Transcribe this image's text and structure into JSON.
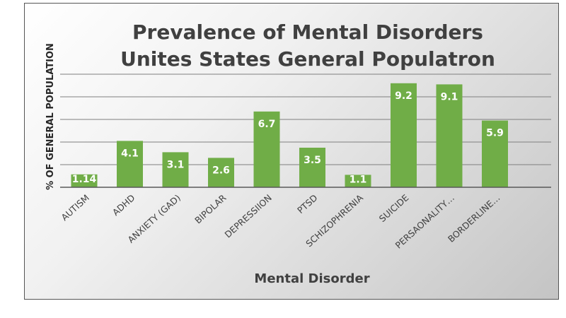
{
  "chart_data": {
    "type": "bar",
    "title": "Prevalence of Mental Disorders",
    "subtitle": "Unites States General Populatron",
    "xlabel": "Mental Disorder",
    "ylabel": "% OF GENERAL POPULATION",
    "categories": [
      "AUTISM",
      "ADHD",
      "ANXIETY (GAD)",
      "BIPOLAR",
      "DEPRESSIION",
      "PTSD",
      "SCHIZOPHRENIA",
      "SUICIDE",
      "PERSAONALITY…",
      "BORDERLINE…"
    ],
    "values": [
      1.14,
      4.1,
      3.1,
      2.6,
      6.7,
      3.5,
      1.1,
      9.2,
      9.1,
      5.9
    ],
    "value_labels": [
      "1.14",
      "4.1",
      "3.1",
      "2.6",
      "6.7",
      "3.5",
      "1.1",
      "9.2",
      "9.1",
      "5.9"
    ],
    "ylim": [
      0,
      10
    ],
    "grid": true,
    "legend": "none",
    "bar_color": "#70ad47",
    "grid_color": "#7f7f7f"
  }
}
